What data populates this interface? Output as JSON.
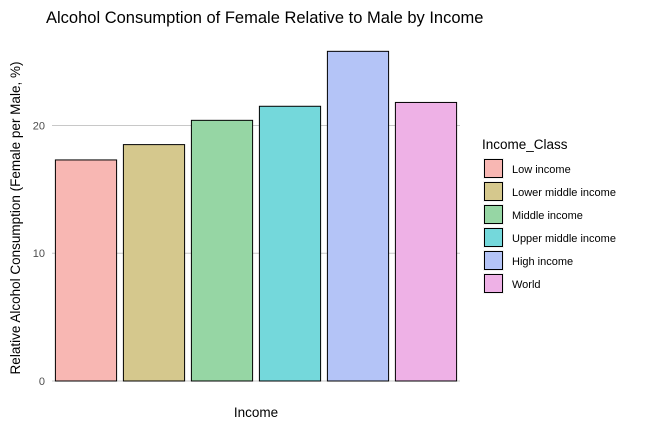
{
  "chart_data": {
    "type": "bar",
    "title": "Alcohol Consumption of Female Relative to Male by Income",
    "xlabel": "Income",
    "ylabel": "Relative Alcohol Consumption (Female per Male, %)",
    "ylim": [
      0,
      27
    ],
    "yticks": [
      0,
      10,
      20
    ],
    "grid": "horizontal major",
    "legend": {
      "title": "Income_Class",
      "position": "right"
    },
    "categories": [
      "Low income",
      "Lower middle income",
      "Middle income",
      "Upper middle income",
      "High income",
      "World"
    ],
    "values": [
      17.3,
      18.5,
      20.4,
      21.5,
      25.8,
      21.8
    ],
    "colors": [
      "#f8b7b3",
      "#d5c88d",
      "#96d6a4",
      "#74d8db",
      "#b4c4f7",
      "#eeb1e6"
    ]
  }
}
